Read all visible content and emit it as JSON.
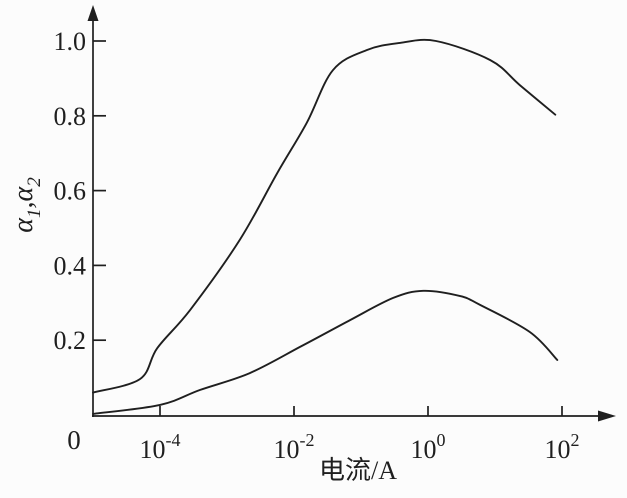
{
  "figure": {
    "background": "#fcfcfc",
    "ink_color": "#1f1f1f",
    "curve_stroke_width": 1.9,
    "axis_stroke_width": 1.7
  },
  "chart_data": {
    "type": "line",
    "title": "",
    "xlabel": "电流/A",
    "ylabel": "α1,α2",
    "ylabel_parts": [
      {
        "text": "α",
        "sub": "1"
      },
      {
        "text": ",α",
        "sub": "2"
      }
    ],
    "x_scale": "log10",
    "x_origin_label": "0",
    "x_ticks": [
      {
        "label": "10^-4",
        "base": "10",
        "exp": "-4",
        "log10": -4
      },
      {
        "label": "10^-2",
        "base": "10",
        "exp": "-2",
        "log10": -2
      },
      {
        "label": "10^0",
        "base": "10",
        "exp": "0",
        "log10": 0
      },
      {
        "label": "10^2",
        "base": "10",
        "exp": "2",
        "log10": 2
      }
    ],
    "y_ticks": [
      {
        "label": "0.2",
        "value": 0.2
      },
      {
        "label": "0.4",
        "value": 0.4
      },
      {
        "label": "0.6",
        "value": 0.6
      },
      {
        "label": "0.8",
        "value": 0.8
      },
      {
        "label": "1.0",
        "value": 1.0
      }
    ],
    "x_log_range": [
      -5,
      2.75
    ],
    "ylim": [
      0,
      1.08
    ],
    "grid": false,
    "legend": "none",
    "series": [
      {
        "name": "α1",
        "role": "upper-curve",
        "points_log10x_y": [
          [
            -5.0,
            0.06
          ],
          [
            -4.3,
            0.096
          ],
          [
            -4.04,
            0.179
          ],
          [
            -3.55,
            0.281
          ],
          [
            -2.81,
            0.468
          ],
          [
            -2.25,
            0.647
          ],
          [
            -1.81,
            0.781
          ],
          [
            -1.42,
            0.922
          ],
          [
            -0.91,
            0.976
          ],
          [
            -0.42,
            0.995
          ],
          [
            0.12,
            1.0
          ],
          [
            0.93,
            0.949
          ],
          [
            1.37,
            0.882
          ],
          [
            1.9,
            0.803
          ]
        ]
      },
      {
        "name": "α2",
        "role": "lower-curve",
        "points_log10x_y": [
          [
            -5.0,
            0.003
          ],
          [
            -4.0,
            0.027
          ],
          [
            -3.4,
            0.067
          ],
          [
            -2.66,
            0.112
          ],
          [
            -1.91,
            0.182
          ],
          [
            -1.16,
            0.254
          ],
          [
            -0.52,
            0.313
          ],
          [
            -0.07,
            0.332
          ],
          [
            0.48,
            0.318
          ],
          [
            0.78,
            0.294
          ],
          [
            1.52,
            0.222
          ],
          [
            1.93,
            0.147
          ]
        ]
      }
    ]
  }
}
